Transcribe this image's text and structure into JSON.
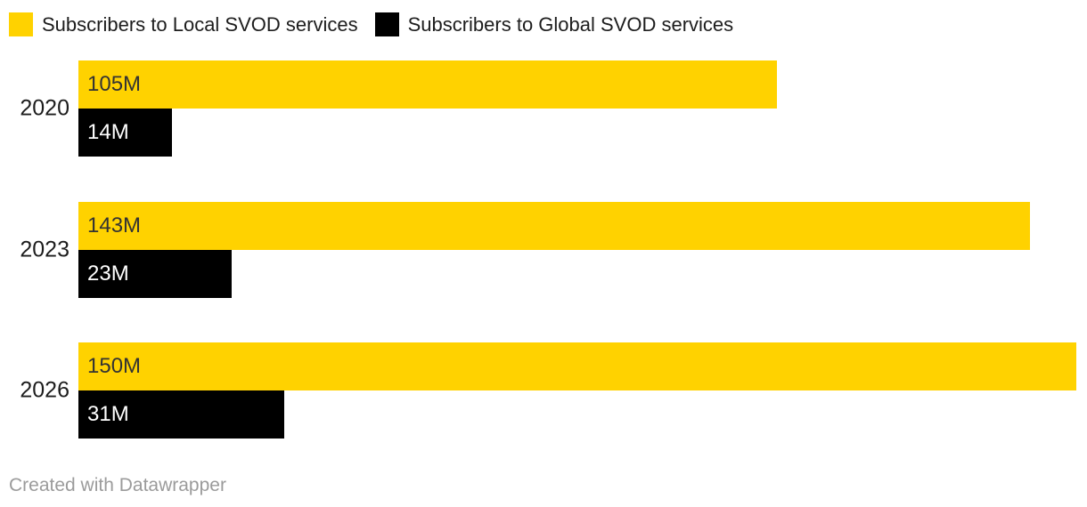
{
  "footer": {
    "credit": "Created with Datawrapper"
  },
  "colors": {
    "background": "#ffffff",
    "text": "#1d1d1d",
    "muted_text": "#9b9b9b",
    "local_series": "#ffd200",
    "global_series": "#000000"
  },
  "chart_data": {
    "type": "bar",
    "orientation": "horizontal",
    "title": "",
    "xlabel": "",
    "ylabel": "",
    "categories": [
      "2020",
      "2023",
      "2026"
    ],
    "series": [
      {
        "name": "Subscribers to Local SVOD services",
        "color": "#ffd200",
        "label_color": "#333333",
        "values": [
          105,
          143,
          150
        ],
        "labels": [
          "105M",
          "143M",
          "150M"
        ]
      },
      {
        "name": "Subscribers to Global SVOD services",
        "color": "#000000",
        "label_color": "#ffffff",
        "values": [
          14,
          23,
          31
        ],
        "labels": [
          "14M",
          "23M",
          "31M"
        ]
      }
    ],
    "unit": "M",
    "xlim": [
      0,
      150
    ],
    "grid": false,
    "legend_position": "top",
    "value_labels": "inside-start"
  }
}
